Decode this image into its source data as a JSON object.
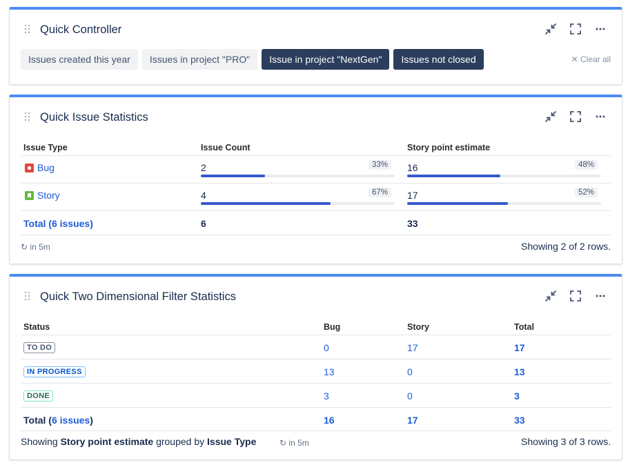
{
  "controller": {
    "title": "Quick Controller",
    "chips": [
      {
        "label": "Issues created this year",
        "active": false
      },
      {
        "label": "Issues in project \"PRO\"",
        "active": false
      },
      {
        "label": "Issue in project \"NextGen\"",
        "active": true
      },
      {
        "label": "Issues not closed",
        "active": true
      }
    ],
    "clear_all": "Clear all"
  },
  "stats": {
    "title": "Quick Issue Statistics",
    "columns": [
      "Issue Type",
      "Issue Count",
      "Story point estimate"
    ],
    "rows": [
      {
        "type": "Bug",
        "icon": "bug-icon",
        "count": "2",
        "count_pct": "33%",
        "count_frac": 0.33,
        "sp": "16",
        "sp_pct": "48%",
        "sp_frac": 0.48
      },
      {
        "type": "Story",
        "icon": "story-icon",
        "count": "4",
        "count_pct": "67%",
        "count_frac": 0.67,
        "sp": "17",
        "sp_pct": "52%",
        "sp_frac": 0.52
      }
    ],
    "total_label": "Total (6 issues)",
    "total_count": "6",
    "total_sp": "33",
    "refresh": "in 5m",
    "showing": "Showing 2 of 2 rows."
  },
  "twod": {
    "title": "Quick Two Dimensional Filter Statistics",
    "columns": [
      "Status",
      "Bug",
      "Story",
      "Total"
    ],
    "rows": [
      {
        "status": "TO DO",
        "bug": "0",
        "story": "17",
        "total": "17"
      },
      {
        "status": "IN PROGRESS",
        "bug": "13",
        "story": "0",
        "total": "13"
      },
      {
        "status": "DONE",
        "bug": "3",
        "story": "0",
        "total": "3"
      }
    ],
    "total_prefix": "Total (",
    "total_link": "6 issues",
    "total_suffix": ")",
    "total_bug": "16",
    "total_story": "17",
    "total_total": "33",
    "footer_showing": "Showing ",
    "footer_field": "Story point estimate",
    "footer_grouped": " grouped by ",
    "footer_group": "Issue Type",
    "refresh": "in 5m",
    "showing": "Showing 3 of 3 rows."
  },
  "colors": {
    "accent_bar": "#4c8cf2",
    "bug": "#e2483d",
    "story": "#63ba3c",
    "link": "#1d5cd6",
    "todo": "#44546f",
    "in_progress": "#0055cc",
    "done": "#216e4e"
  }
}
